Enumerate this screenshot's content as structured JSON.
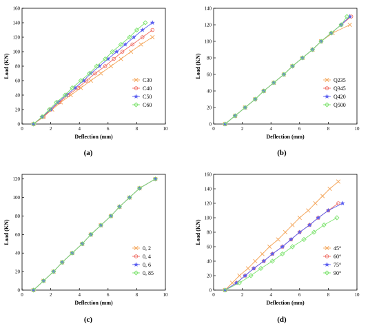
{
  "colors": {
    "s1": "#f4a65b",
    "s2": "#ef6b61",
    "s3": "#5a5ef0",
    "s4": "#7de36e",
    "axis": "#000000"
  },
  "panel_labels": [
    "(a)",
    "(b)",
    "(c)",
    "(d)"
  ],
  "chart_data": [
    {
      "type": "line",
      "xlabel": "Deflection (mm)",
      "ylabel": "Load (KN)",
      "xlim": [
        0,
        10
      ],
      "ylim": [
        0,
        160
      ],
      "xticks": [
        0,
        2,
        4,
        6,
        8,
        10
      ],
      "yticks": [
        0,
        20,
        40,
        60,
        80,
        100,
        120,
        140,
        160
      ],
      "legend_position": "bottom-right",
      "series": [
        {
          "name": "C30",
          "marker": "x",
          "color": "s1",
          "points": [
            [
              0.8,
              0
            ],
            [
              1.5,
              10
            ],
            [
              2.1,
              20
            ],
            [
              2.7,
              30
            ],
            [
              3.4,
              40
            ],
            [
              4.1,
              50
            ],
            [
              4.8,
              60
            ],
            [
              5.5,
              70
            ],
            [
              6.2,
              80
            ],
            [
              6.9,
              90
            ],
            [
              7.6,
              100
            ],
            [
              8.3,
              110
            ],
            [
              9.1,
              120
            ]
          ]
        },
        {
          "name": "C40",
          "marker": "o",
          "color": "s2",
          "points": [
            [
              0.8,
              0
            ],
            [
              1.5,
              10
            ],
            [
              2.0,
              20
            ],
            [
              2.6,
              30
            ],
            [
              3.2,
              40
            ],
            [
              3.9,
              50
            ],
            [
              4.5,
              60
            ],
            [
              5.1,
              70
            ],
            [
              5.8,
              80
            ],
            [
              6.4,
              90
            ],
            [
              7.0,
              100
            ],
            [
              7.7,
              110
            ],
            [
              8.4,
              120
            ],
            [
              9.1,
              130
            ]
          ]
        },
        {
          "name": "C50",
          "marker": "star",
          "color": "s3",
          "points": [
            [
              0.8,
              0
            ],
            [
              1.4,
              10
            ],
            [
              2.0,
              20
            ],
            [
              2.5,
              30
            ],
            [
              3.1,
              40
            ],
            [
              3.7,
              50
            ],
            [
              4.3,
              60
            ],
            [
              4.8,
              70
            ],
            [
              5.4,
              80
            ],
            [
              6.0,
              90
            ],
            [
              6.6,
              100
            ],
            [
              7.2,
              110
            ],
            [
              7.8,
              120
            ],
            [
              8.4,
              130
            ],
            [
              9.1,
              140
            ]
          ]
        },
        {
          "name": "C60",
          "marker": "diamond",
          "color": "s4",
          "points": [
            [
              0.8,
              0
            ],
            [
              1.4,
              10
            ],
            [
              1.9,
              20
            ],
            [
              2.4,
              30
            ],
            [
              3.0,
              40
            ],
            [
              3.5,
              50
            ],
            [
              4.1,
              60
            ],
            [
              4.7,
              70
            ],
            [
              5.2,
              80
            ],
            [
              5.8,
              90
            ],
            [
              6.3,
              100
            ],
            [
              6.9,
              110
            ],
            [
              7.5,
              120
            ],
            [
              8.0,
              130
            ],
            [
              8.6,
              140
            ]
          ]
        }
      ]
    },
    {
      "type": "line",
      "xlabel": "Deflection (mm)",
      "ylabel": "Load (KN)",
      "xlim": [
        0,
        10
      ],
      "ylim": [
        0,
        140
      ],
      "xticks": [
        0,
        2,
        4,
        6,
        8,
        10
      ],
      "yticks": [
        0,
        20,
        40,
        60,
        80,
        100,
        120,
        140
      ],
      "legend_position": "bottom-right",
      "series": [
        {
          "name": "Q235",
          "marker": "x",
          "color": "s1",
          "points": [
            [
              0.8,
              0
            ],
            [
              1.5,
              10
            ],
            [
              2.2,
              20
            ],
            [
              2.9,
              30
            ],
            [
              3.5,
              40
            ],
            [
              4.2,
              50
            ],
            [
              4.9,
              60
            ],
            [
              5.5,
              70
            ],
            [
              6.2,
              80
            ],
            [
              6.9,
              90
            ],
            [
              7.5,
              100
            ],
            [
              8.3,
              110
            ],
            [
              9.5,
              120
            ]
          ]
        },
        {
          "name": "Q345",
          "marker": "o",
          "color": "s2",
          "points": [
            [
              0.8,
              0
            ],
            [
              1.5,
              10
            ],
            [
              2.2,
              20
            ],
            [
              2.9,
              30
            ],
            [
              3.5,
              40
            ],
            [
              4.2,
              50
            ],
            [
              4.9,
              60
            ],
            [
              5.5,
              70
            ],
            [
              6.2,
              80
            ],
            [
              6.9,
              90
            ],
            [
              7.5,
              100
            ],
            [
              8.2,
              110
            ],
            [
              8.9,
              120
            ],
            [
              9.6,
              130
            ]
          ]
        },
        {
          "name": "Q420",
          "marker": "star",
          "color": "s3",
          "points": [
            [
              0.8,
              0
            ],
            [
              1.5,
              10
            ],
            [
              2.2,
              20
            ],
            [
              2.9,
              30
            ],
            [
              3.5,
              40
            ],
            [
              4.2,
              50
            ],
            [
              4.9,
              60
            ],
            [
              5.5,
              70
            ],
            [
              6.2,
              80
            ],
            [
              6.9,
              90
            ],
            [
              7.5,
              100
            ],
            [
              8.2,
              110
            ],
            [
              8.9,
              120
            ],
            [
              9.5,
              130
            ]
          ]
        },
        {
          "name": "Q500",
          "marker": "diamond",
          "color": "s4",
          "points": [
            [
              0.8,
              0
            ],
            [
              1.5,
              10
            ],
            [
              2.2,
              20
            ],
            [
              2.9,
              30
            ],
            [
              3.5,
              40
            ],
            [
              4.2,
              50
            ],
            [
              4.9,
              60
            ],
            [
              5.5,
              70
            ],
            [
              6.2,
              80
            ],
            [
              6.9,
              90
            ],
            [
              7.5,
              100
            ],
            [
              8.2,
              110
            ],
            [
              8.9,
              120
            ],
            [
              9.3,
              130
            ]
          ]
        }
      ]
    },
    {
      "type": "line",
      "xlabel": "Deflection (mm)",
      "ylabel": "Load (KN)",
      "xlim": [
        0,
        10
      ],
      "ylim": [
        0,
        125
      ],
      "xticks": [
        0,
        2,
        4,
        6,
        8,
        10
      ],
      "yticks": [
        0,
        20,
        40,
        60,
        80,
        100,
        120
      ],
      "legend_position": "bottom-right",
      "series": [
        {
          "name": "0, 2",
          "marker": "x",
          "color": "s1",
          "points": [
            [
              0.8,
              0
            ],
            [
              1.5,
              10
            ],
            [
              2.2,
              20
            ],
            [
              2.8,
              30
            ],
            [
              3.5,
              40
            ],
            [
              4.2,
              50
            ],
            [
              4.8,
              60
            ],
            [
              5.5,
              70
            ],
            [
              6.2,
              80
            ],
            [
              6.8,
              90
            ],
            [
              7.5,
              100
            ],
            [
              8.2,
              110
            ],
            [
              9.3,
              120
            ]
          ]
        },
        {
          "name": "0, 4",
          "marker": "o",
          "color": "s2",
          "points": [
            [
              0.8,
              0
            ],
            [
              1.5,
              10
            ],
            [
              2.2,
              20
            ],
            [
              2.8,
              30
            ],
            [
              3.5,
              40
            ],
            [
              4.2,
              50
            ],
            [
              4.8,
              60
            ],
            [
              5.5,
              70
            ],
            [
              6.2,
              80
            ],
            [
              6.8,
              90
            ],
            [
              7.5,
              100
            ],
            [
              8.2,
              110
            ],
            [
              9.3,
              120
            ]
          ]
        },
        {
          "name": "0, 6",
          "marker": "star",
          "color": "s3",
          "points": [
            [
              0.8,
              0
            ],
            [
              1.5,
              10
            ],
            [
              2.2,
              20
            ],
            [
              2.8,
              30
            ],
            [
              3.5,
              40
            ],
            [
              4.2,
              50
            ],
            [
              4.8,
              60
            ],
            [
              5.5,
              70
            ],
            [
              6.2,
              80
            ],
            [
              6.8,
              90
            ],
            [
              7.5,
              100
            ],
            [
              8.2,
              110
            ],
            [
              9.3,
              120
            ]
          ]
        },
        {
          "name": "0, 85",
          "marker": "diamond",
          "color": "s4",
          "points": [
            [
              0.8,
              0
            ],
            [
              1.5,
              10
            ],
            [
              2.2,
              20
            ],
            [
              2.8,
              30
            ],
            [
              3.5,
              40
            ],
            [
              4.2,
              50
            ],
            [
              4.8,
              60
            ],
            [
              5.5,
              70
            ],
            [
              6.2,
              80
            ],
            [
              6.8,
              90
            ],
            [
              7.5,
              100
            ],
            [
              8.2,
              110
            ],
            [
              9.3,
              120
            ]
          ]
        }
      ]
    },
    {
      "type": "line",
      "xlabel": "Deflection (mm)",
      "ylabel": "Load (KN)",
      "xlim": [
        0,
        10
      ],
      "ylim": [
        0,
        160
      ],
      "xticks": [
        0,
        2,
        4,
        6,
        8,
        10
      ],
      "yticks": [
        0,
        20,
        40,
        60,
        80,
        100,
        120,
        140,
        160
      ],
      "legend_position": "bottom-right",
      "series": [
        {
          "name": "45°",
          "marker": "x",
          "color": "s1",
          "points": [
            [
              0.8,
              0
            ],
            [
              1.3,
              10
            ],
            [
              1.8,
              20
            ],
            [
              2.4,
              30
            ],
            [
              2.9,
              40
            ],
            [
              3.4,
              50
            ],
            [
              3.9,
              60
            ],
            [
              4.5,
              70
            ],
            [
              5.0,
              80
            ],
            [
              5.5,
              90
            ],
            [
              6.0,
              100
            ],
            [
              6.6,
              110
            ],
            [
              7.1,
              120
            ],
            [
              7.6,
              130
            ],
            [
              8.1,
              140
            ],
            [
              8.7,
              150
            ]
          ]
        },
        {
          "name": "60°",
          "marker": "o",
          "color": "s2",
          "points": [
            [
              0.8,
              0
            ],
            [
              1.6,
              10
            ],
            [
              2.2,
              20
            ],
            [
              2.8,
              30
            ],
            [
              3.5,
              40
            ],
            [
              4.1,
              50
            ],
            [
              4.8,
              60
            ],
            [
              5.4,
              70
            ],
            [
              6.0,
              80
            ],
            [
              6.7,
              90
            ],
            [
              7.3,
              100
            ],
            [
              8.0,
              110
            ],
            [
              8.7,
              120
            ]
          ]
        },
        {
          "name": "75°",
          "marker": "star",
          "color": "s3",
          "points": [
            [
              0.8,
              0
            ],
            [
              1.6,
              10
            ],
            [
              2.2,
              20
            ],
            [
              2.8,
              30
            ],
            [
              3.5,
              40
            ],
            [
              4.1,
              50
            ],
            [
              4.8,
              60
            ],
            [
              5.4,
              70
            ],
            [
              6.0,
              80
            ],
            [
              6.7,
              90
            ],
            [
              7.3,
              100
            ],
            [
              8.0,
              110
            ],
            [
              9.0,
              120
            ]
          ]
        },
        {
          "name": "90°",
          "marker": "diamond",
          "color": "s4",
          "points": [
            [
              0.8,
              0
            ],
            [
              1.8,
              10
            ],
            [
              2.6,
              20
            ],
            [
              3.3,
              30
            ],
            [
              4.1,
              40
            ],
            [
              4.8,
              50
            ],
            [
              5.5,
              60
            ],
            [
              6.3,
              70
            ],
            [
              7.0,
              80
            ],
            [
              7.7,
              90
            ],
            [
              8.6,
              100
            ]
          ]
        }
      ]
    }
  ]
}
